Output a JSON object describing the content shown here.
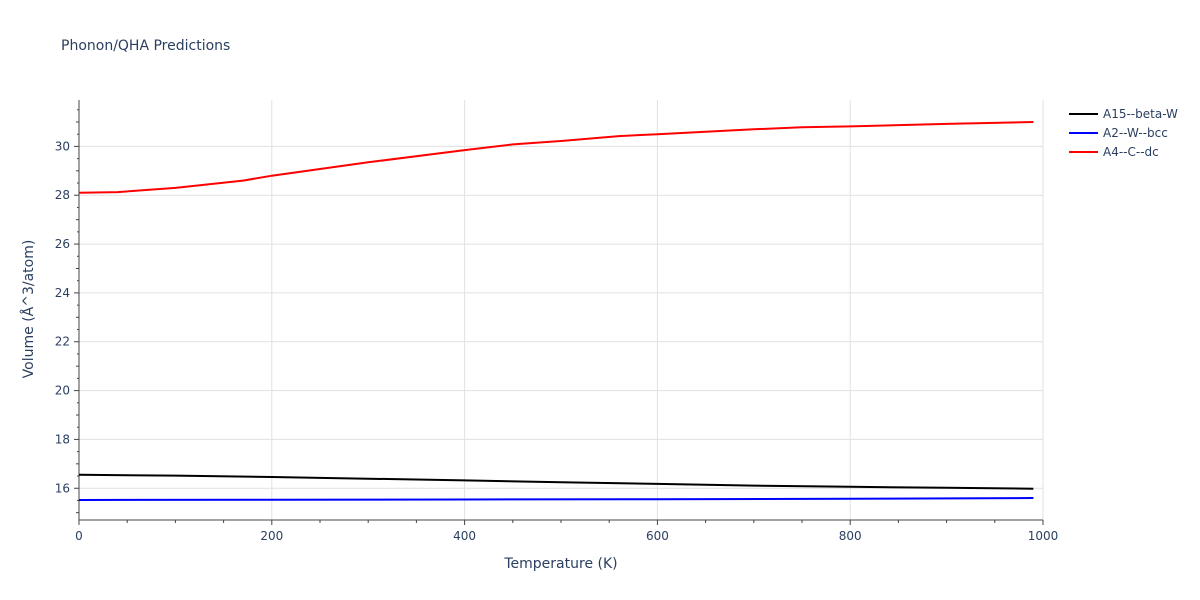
{
  "chart_data": {
    "type": "line",
    "title": "Phonon/QHA Predictions",
    "xlabel": "Temperature (K)",
    "ylabel": "Volume (Å^3/atom)",
    "xlim": [
      0,
      1000
    ],
    "ylim": [
      14.7,
      31.9
    ],
    "xticks": [
      0,
      200,
      400,
      600,
      800,
      1000
    ],
    "yticks": [
      16,
      18,
      20,
      22,
      24,
      26,
      28,
      30
    ],
    "grid": true,
    "legend_position": "top-right",
    "series": [
      {
        "name": "A15--beta-W",
        "color": "#000000",
        "x": [
          0,
          100,
          200,
          300,
          400,
          500,
          600,
          700,
          800,
          900,
          990
        ],
        "y": [
          16.55,
          16.52,
          16.46,
          16.39,
          16.32,
          16.25,
          16.18,
          16.11,
          16.06,
          16.02,
          15.98
        ]
      },
      {
        "name": "A2--W--bcc",
        "color": "#0000ff",
        "x": [
          0,
          200,
          400,
          600,
          800,
          990
        ],
        "y": [
          15.52,
          15.53,
          15.54,
          15.55,
          15.57,
          15.6
        ]
      },
      {
        "name": "A4--C--dc",
        "color": "#ff0000",
        "x": [
          0,
          40,
          100,
          170,
          200,
          300,
          400,
          450,
          500,
          560,
          600,
          700,
          750,
          800,
          900,
          990
        ],
        "y": [
          28.1,
          28.13,
          28.3,
          28.6,
          28.8,
          29.35,
          29.85,
          30.08,
          30.22,
          30.42,
          30.5,
          30.7,
          30.78,
          30.82,
          30.92,
          31.0
        ]
      }
    ]
  }
}
